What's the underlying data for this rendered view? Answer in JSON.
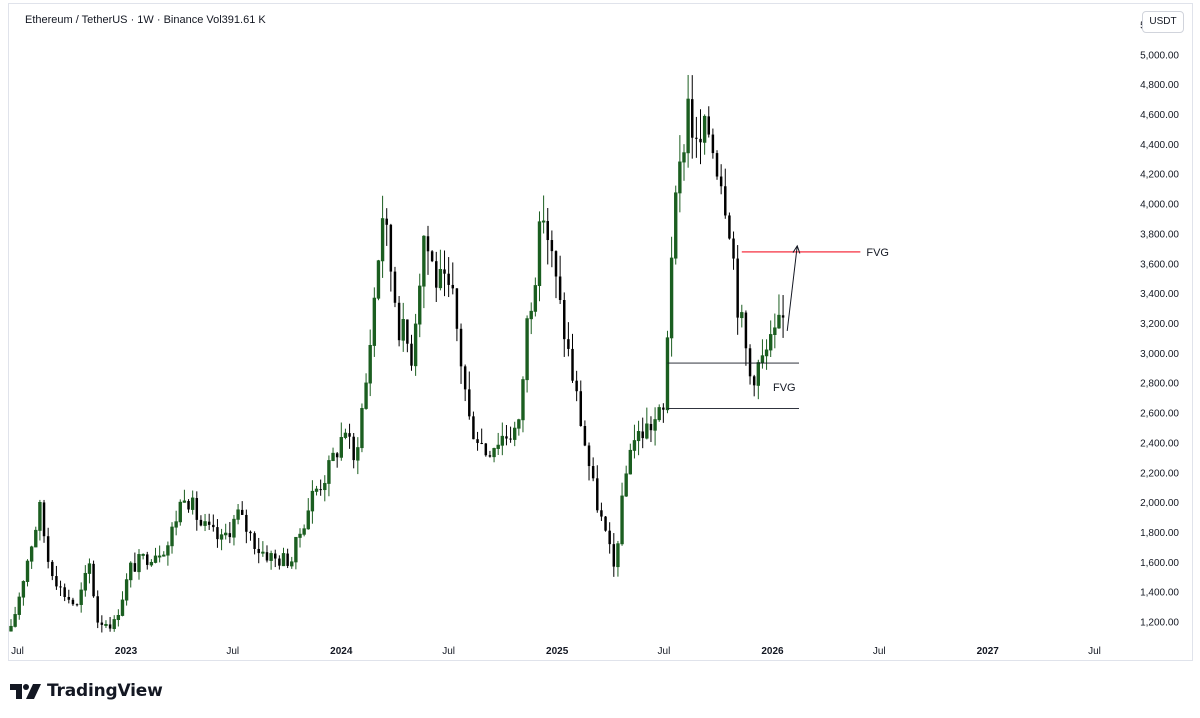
{
  "header": {
    "legend_text": "Ethereum / TetherUS · 1W · Binance  Vol391.61 K",
    "currency_button": "USDT"
  },
  "brand": {
    "name": "TradingView",
    "logo_icon": "tradingview-logo-icon"
  },
  "colors": {
    "candle_up": "#1b5e20",
    "candle_down": "#000000",
    "resistance_line": "#f7525f",
    "annotation": "#131722"
  },
  "chart_data": {
    "type": "candlestick",
    "title": "Ethereum / TetherUS · 1W · Binance",
    "volume_label": "Vol391.61 K",
    "y_axis": {
      "unit": "USDT",
      "ylim": [
        1100,
        5300
      ],
      "ticks": [
        1200,
        1400,
        1600,
        1800,
        2000,
        2200,
        2400,
        2600,
        2800,
        3000,
        3200,
        3400,
        3600,
        3800,
        4000,
        4200,
        4400,
        4600,
        4800,
        5000,
        5200
      ],
      "tick_labels": [
        "1,200.00",
        "1,400.00",
        "1,600.00",
        "1,800.00",
        "2,000.00",
        "2,200.00",
        "2,400.00",
        "2,600.00",
        "2,800.00",
        "3,000.00",
        "3,200.00",
        "3,400.00",
        "3,600.00",
        "3,800.00",
        "4,000.00",
        "4,200.00",
        "4,400.00",
        "4,600.00",
        "4,800.00",
        "5,000.00",
        "5,200.00"
      ]
    },
    "x_axis": {
      "range": [
        "2022-06-20",
        "2027-08-20"
      ],
      "ticks": [
        {
          "date": "2022-07-01",
          "label": "Jul",
          "year": false
        },
        {
          "date": "2023-01-01",
          "label": "2023",
          "year": true
        },
        {
          "date": "2023-07-01",
          "label": "Jul",
          "year": false
        },
        {
          "date": "2024-01-01",
          "label": "2024",
          "year": true
        },
        {
          "date": "2024-07-01",
          "label": "Jul",
          "year": false
        },
        {
          "date": "2025-01-01",
          "label": "2025",
          "year": true
        },
        {
          "date": "2025-07-01",
          "label": "Jul",
          "year": false
        },
        {
          "date": "2026-01-01",
          "label": "2026",
          "year": true
        },
        {
          "date": "2026-07-01",
          "label": "Jul",
          "year": false
        },
        {
          "date": "2027-01-01",
          "label": "2027",
          "year": true
        },
        {
          "date": "2027-07-01",
          "label": "Jul",
          "year": false
        }
      ]
    },
    "series_close": [
      {
        "date": "2022-06-20",
        "close": 1140
      },
      {
        "date": "2022-07-18",
        "close": 1620
      },
      {
        "date": "2022-08-08",
        "close": 1950
      },
      {
        "date": "2022-08-22",
        "close": 1620
      },
      {
        "date": "2022-09-12",
        "close": 1420
      },
      {
        "date": "2022-10-10",
        "close": 1300
      },
      {
        "date": "2022-10-31",
        "close": 1580
      },
      {
        "date": "2022-11-14",
        "close": 1210
      },
      {
        "date": "2022-12-12",
        "close": 1190
      },
      {
        "date": "2023-01-09",
        "close": 1560
      },
      {
        "date": "2023-02-06",
        "close": 1640
      },
      {
        "date": "2023-03-13",
        "close": 1720
      },
      {
        "date": "2023-04-10",
        "close": 2080
      },
      {
        "date": "2023-05-08",
        "close": 1850
      },
      {
        "date": "2023-06-12",
        "close": 1740
      },
      {
        "date": "2023-07-10",
        "close": 1920
      },
      {
        "date": "2023-08-14",
        "close": 1690
      },
      {
        "date": "2023-09-11",
        "close": 1620
      },
      {
        "date": "2023-10-09",
        "close": 1620
      },
      {
        "date": "2023-10-23",
        "close": 1800
      },
      {
        "date": "2023-11-13",
        "close": 2050
      },
      {
        "date": "2023-12-11",
        "close": 2220
      },
      {
        "date": "2024-01-08",
        "close": 2500
      },
      {
        "date": "2024-01-22",
        "close": 2260
      },
      {
        "date": "2024-02-12",
        "close": 2800
      },
      {
        "date": "2024-03-11",
        "close": 3950
      },
      {
        "date": "2024-04-08",
        "close": 3200
      },
      {
        "date": "2024-04-29",
        "close": 3000
      },
      {
        "date": "2024-05-20",
        "close": 3800
      },
      {
        "date": "2024-06-10",
        "close": 3500
      },
      {
        "date": "2024-07-08",
        "close": 3350
      },
      {
        "date": "2024-08-05",
        "close": 2550
      },
      {
        "date": "2024-09-02",
        "close": 2350
      },
      {
        "date": "2024-09-30",
        "close": 2450
      },
      {
        "date": "2024-10-28",
        "close": 2500
      },
      {
        "date": "2024-11-11",
        "close": 3200
      },
      {
        "date": "2024-12-09",
        "close": 3950
      },
      {
        "date": "2025-01-06",
        "close": 3300
      },
      {
        "date": "2025-02-03",
        "close": 2700
      },
      {
        "date": "2025-03-03",
        "close": 2100
      },
      {
        "date": "2025-04-07",
        "close": 1560
      },
      {
        "date": "2025-05-05",
        "close": 2400
      },
      {
        "date": "2025-06-02",
        "close": 2500
      },
      {
        "date": "2025-06-30",
        "close": 2600
      },
      {
        "date": "2025-07-14",
        "close": 3700
      },
      {
        "date": "2025-08-11",
        "close": 4700
      },
      {
        "date": "2025-08-25",
        "close": 4350
      },
      {
        "date": "2025-09-15",
        "close": 4500
      },
      {
        "date": "2025-10-06",
        "close": 4200
      },
      {
        "date": "2025-10-20",
        "close": 3900
      },
      {
        "date": "2025-11-03",
        "close": 3350
      },
      {
        "date": "2025-11-24",
        "close": 2850
      },
      {
        "date": "2025-12-15",
        "close": 2950
      },
      {
        "date": "2026-01-05",
        "close": 3100
      },
      {
        "date": "2026-01-19",
        "close": 3220
      }
    ],
    "annotations": [
      {
        "type": "line",
        "label": "FVG",
        "price": 3680,
        "from": "2025-11-10",
        "to": "2026-05-30",
        "color": "#f7525f"
      },
      {
        "type": "zone",
        "label": "FVG",
        "top": 2935,
        "bottom": 2630,
        "from": "2025-07-07",
        "to": "2026-02-15"
      },
      {
        "type": "arrow",
        "from_date": "2026-01-26",
        "from_price": 3150,
        "to_date": "2026-02-12",
        "to_price": 3720
      }
    ]
  }
}
